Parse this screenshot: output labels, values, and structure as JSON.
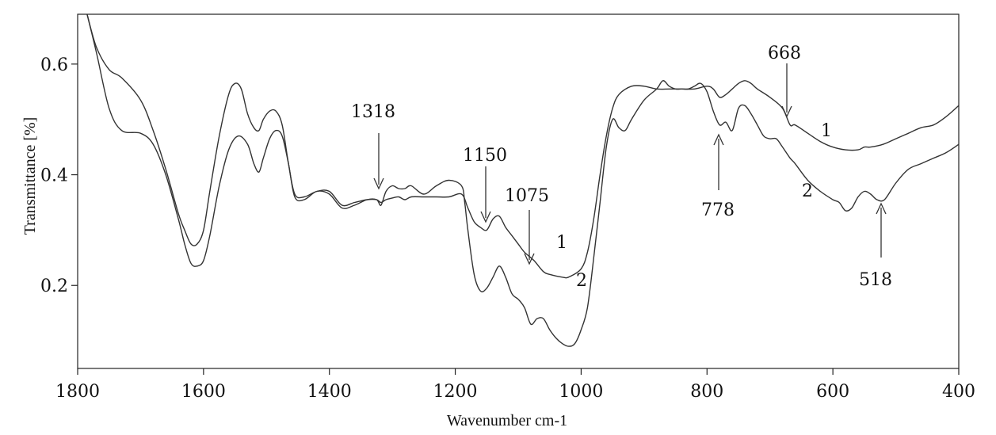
{
  "chart_data": {
    "type": "line",
    "title": "",
    "xlabel": "Wavenumber cm-1",
    "ylabel": "Transmittance [%]",
    "xlim": [
      1800,
      400
    ],
    "ylim": [
      0.05,
      0.69
    ],
    "x_ticks": [
      "1800",
      "1600",
      "1400",
      "1200",
      "1000",
      "800",
      "600",
      "400"
    ],
    "x_tick_values": [
      1800,
      1600,
      1400,
      1200,
      1000,
      800,
      600,
      400
    ],
    "y_ticks": [
      "0.2",
      "0.4",
      "0.6"
    ],
    "y_tick_values": [
      0.2,
      0.4,
      0.6
    ],
    "series": [
      {
        "name": "1",
        "x": [
          1785,
          1770,
          1750,
          1730,
          1700,
          1680,
          1660,
          1640,
          1630,
          1620,
          1610,
          1600,
          1590,
          1575,
          1560,
          1550,
          1540,
          1530,
          1520,
          1512,
          1505,
          1495,
          1485,
          1475,
          1465,
          1455,
          1440,
          1420,
          1400,
          1380,
          1360,
          1340,
          1325,
          1318,
          1310,
          1300,
          1290,
          1280,
          1270,
          1250,
          1230,
          1210,
          1190,
          1180,
          1170,
          1160,
          1150,
          1140,
          1130,
          1120,
          1110,
          1100,
          1090,
          1075,
          1060,
          1050,
          1030,
          1020,
          1000,
          990,
          980,
          970,
          960,
          950,
          940,
          920,
          900,
          880,
          860,
          840,
          820,
          800,
          790,
          780,
          770,
          760,
          750,
          740,
          730,
          720,
          700,
          680,
          668,
          660,
          640,
          620,
          600,
          580,
          560,
          550,
          540,
          520,
          500,
          480,
          460,
          440,
          420,
          400
        ],
        "y": [
          0.69,
          0.63,
          0.59,
          0.575,
          0.535,
          0.48,
          0.41,
          0.33,
          0.3,
          0.275,
          0.275,
          0.3,
          0.37,
          0.47,
          0.545,
          0.565,
          0.555,
          0.51,
          0.485,
          0.48,
          0.5,
          0.515,
          0.515,
          0.49,
          0.42,
          0.365,
          0.36,
          0.37,
          0.37,
          0.345,
          0.35,
          0.355,
          0.355,
          0.35,
          0.355,
          0.358,
          0.36,
          0.355,
          0.36,
          0.36,
          0.36,
          0.36,
          0.365,
          0.34,
          0.315,
          0.305,
          0.3,
          0.32,
          0.325,
          0.305,
          0.29,
          0.275,
          0.26,
          0.245,
          0.225,
          0.22,
          0.215,
          0.215,
          0.23,
          0.26,
          0.32,
          0.4,
          0.47,
          0.52,
          0.545,
          0.56,
          0.56,
          0.555,
          0.555,
          0.555,
          0.555,
          0.56,
          0.555,
          0.54,
          0.545,
          0.555,
          0.565,
          0.57,
          0.565,
          0.555,
          0.54,
          0.52,
          0.49,
          0.49,
          0.475,
          0.46,
          0.45,
          0.445,
          0.445,
          0.45,
          0.45,
          0.455,
          0.465,
          0.475,
          0.485,
          0.49,
          0.505,
          0.525
        ]
      },
      {
        "name": "2",
        "x": [
          1785,
          1770,
          1750,
          1730,
          1700,
          1680,
          1660,
          1640,
          1630,
          1620,
          1610,
          1600,
          1590,
          1575,
          1560,
          1545,
          1530,
          1520,
          1512,
          1505,
          1495,
          1485,
          1475,
          1465,
          1455,
          1440,
          1420,
          1400,
          1380,
          1360,
          1340,
          1325,
          1318,
          1310,
          1300,
          1290,
          1280,
          1270,
          1250,
          1230,
          1210,
          1190,
          1185,
          1180,
          1170,
          1160,
          1150,
          1140,
          1130,
          1120,
          1110,
          1100,
          1090,
          1080,
          1070,
          1060,
          1050,
          1040,
          1030,
          1020,
          1010,
          1000,
          990,
          980,
          970,
          960,
          950,
          940,
          930,
          920,
          900,
          880,
          870,
          860,
          850,
          840,
          830,
          820,
          810,
          800,
          790,
          780,
          770,
          760,
          750,
          740,
          730,
          720,
          710,
          700,
          690,
          680,
          668,
          660,
          640,
          620,
          600,
          590,
          580,
          570,
          560,
          550,
          540,
          530,
          518,
          500,
          480,
          460,
          440,
          420,
          400
        ],
        "y": [
          0.69,
          0.62,
          0.52,
          0.48,
          0.475,
          0.455,
          0.4,
          0.32,
          0.275,
          0.24,
          0.235,
          0.245,
          0.29,
          0.38,
          0.445,
          0.47,
          0.455,
          0.42,
          0.405,
          0.43,
          0.465,
          0.48,
          0.47,
          0.42,
          0.36,
          0.355,
          0.37,
          0.365,
          0.34,
          0.345,
          0.355,
          0.355,
          0.345,
          0.37,
          0.38,
          0.375,
          0.375,
          0.38,
          0.365,
          0.38,
          0.39,
          0.38,
          0.35,
          0.3,
          0.22,
          0.19,
          0.195,
          0.215,
          0.235,
          0.215,
          0.185,
          0.175,
          0.16,
          0.13,
          0.14,
          0.14,
          0.12,
          0.105,
          0.095,
          0.09,
          0.095,
          0.12,
          0.16,
          0.25,
          0.35,
          0.45,
          0.5,
          0.485,
          0.48,
          0.5,
          0.535,
          0.555,
          0.57,
          0.56,
          0.555,
          0.555,
          0.555,
          0.56,
          0.565,
          0.55,
          0.515,
          0.49,
          0.495,
          0.48,
          0.52,
          0.525,
          0.51,
          0.49,
          0.47,
          0.465,
          0.465,
          0.45,
          0.43,
          0.42,
          0.39,
          0.37,
          0.355,
          0.35,
          0.335,
          0.34,
          0.36,
          0.37,
          0.365,
          0.355,
          0.355,
          0.385,
          0.41,
          0.42,
          0.43,
          0.44,
          0.455
        ]
      }
    ],
    "annotations": {
      "a1318": "1318",
      "a1150": "1150",
      "a1075": "1075",
      "a778": "778",
      "a668": "668",
      "a518": "518",
      "curve1_label_mid": "1",
      "curve2_label_mid": "2",
      "curve1_label_right": "1",
      "curve2_label_right": "2"
    }
  }
}
